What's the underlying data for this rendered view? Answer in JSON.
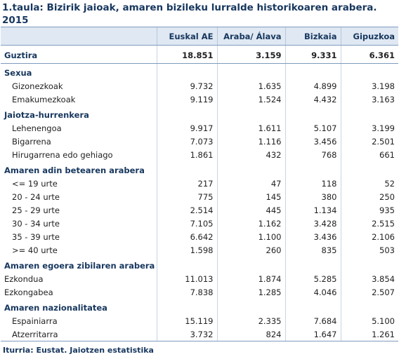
{
  "title": "1.taula: Bizirik jaioak, amaren bizileku lurralde historikoaren arabera. 2015",
  "columns": [
    "Euskal AE",
    "Araba/ Álava",
    "Bizkaia",
    "Gipuzkoa"
  ],
  "total": {
    "label": "Guztira",
    "values": [
      "18.851",
      "3.159",
      "9.331",
      "6.361"
    ]
  },
  "sections": [
    {
      "title": "Sexua",
      "rows": [
        {
          "label": "Gizonezkoak",
          "values": [
            "9.732",
            "1.635",
            "4.899",
            "3.198"
          ]
        },
        {
          "label": "Emakumezkoak",
          "values": [
            "9.119",
            "1.524",
            "4.432",
            "3.163"
          ]
        }
      ]
    },
    {
      "title": "Jaiotza-hurrenkera",
      "rows": [
        {
          "label": "Lehenengoa",
          "values": [
            "9.917",
            "1.611",
            "5.107",
            "3.199"
          ]
        },
        {
          "label": "Bigarrena",
          "values": [
            "7.073",
            "1.116",
            "3.456",
            "2.501"
          ]
        },
        {
          "label": "Hirugarrena edo gehiago",
          "values": [
            "1.861",
            "432",
            "768",
            "661"
          ]
        }
      ]
    },
    {
      "title": "Amaren adin betearen arabera",
      "rows": [
        {
          "label": "<= 19 urte",
          "values": [
            "217",
            "47",
            "118",
            "52"
          ]
        },
        {
          "label": "20 - 24 urte",
          "values": [
            "775",
            "145",
            "380",
            "250"
          ]
        },
        {
          "label": "25 - 29 urte",
          "values": [
            "2.514",
            "445",
            "1.134",
            "935"
          ]
        },
        {
          "label": "30 - 34 urte",
          "values": [
            "7.105",
            "1.162",
            "3.428",
            "2.515"
          ]
        },
        {
          "label": "35 - 39 urte",
          "values": [
            "6.642",
            "1.100",
            "3.436",
            "2.106"
          ]
        },
        {
          "label": ">= 40 urte",
          "values": [
            "1.598",
            "260",
            "835",
            "503"
          ]
        }
      ]
    },
    {
      "title": "Amaren egoera zibilaren arabera",
      "rows": [
        {
          "label": "Ezkondua",
          "values": [
            "11.013",
            "1.874",
            "5.285",
            "3.854"
          ]
        },
        {
          "label": "Ezkongabea",
          "values": [
            "7.838",
            "1.285",
            "4.046",
            "2.507"
          ]
        }
      ]
    },
    {
      "title": "Amaren nazionalitatea",
      "rows": [
        {
          "label": "Espainiarra",
          "values": [
            "15.119",
            "2.335",
            "7.684",
            "5.100"
          ]
        },
        {
          "label": "Atzerritarra",
          "values": [
            "3.732",
            "824",
            "1.647",
            "1.261"
          ]
        }
      ]
    }
  ],
  "source": "Iturria: Eustat. Jaiotzen estatistika"
}
